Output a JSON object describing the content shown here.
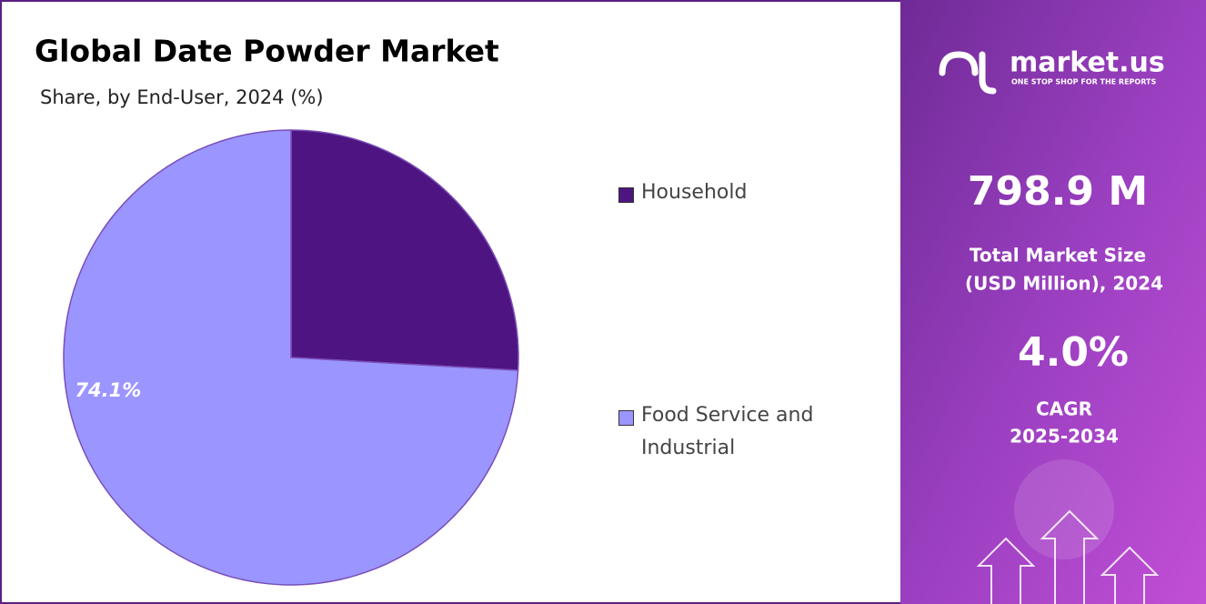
{
  "chart_data": {
    "type": "pie",
    "title": "Global Date Powder Market",
    "subtitle": "Share, by End-User, 2024 (%)",
    "categories": [
      "Household",
      "Food Service and Industrial"
    ],
    "values": [
      25.9,
      74.1
    ],
    "value_labels": [
      null,
      "74.1%"
    ],
    "colors": [
      "#4e1582",
      "#9b95ff"
    ],
    "legend": "right"
  },
  "sidebar": {
    "brand": "market.us",
    "tagline": "ONE STOP SHOP FOR THE REPORTS",
    "market_size": "798.9 M",
    "market_size_label": [
      "Total Market Size",
      "(USD Million), 2024"
    ],
    "cagr": "4.0%",
    "cagr_label": [
      "CAGR",
      "2025-2034"
    ]
  }
}
